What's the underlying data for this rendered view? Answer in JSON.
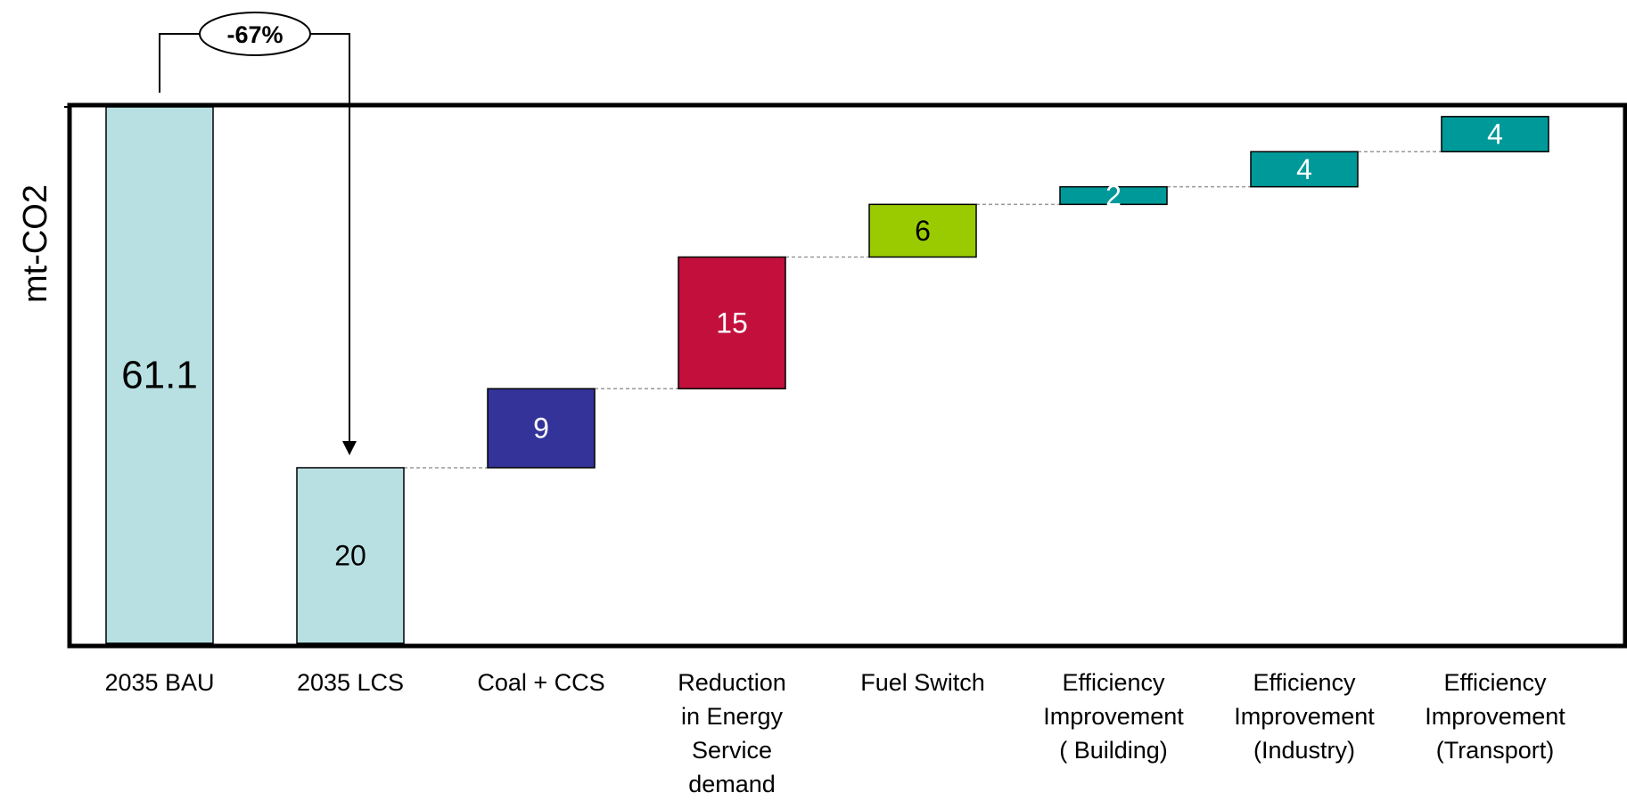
{
  "chart_data": {
    "type": "bar",
    "subtype": "waterfall",
    "ylabel": "mt-CO2",
    "xlabel": "",
    "ylim": [
      0,
      61.1
    ],
    "grid": false,
    "categories": [
      "2035 BAU",
      "2035 LCS",
      "Coal + CCS",
      "Reduction\nin Energy\nService\ndemand",
      "Fuel Switch",
      "Efficiency\nImprovement\n( Building)",
      "Efficiency\nImprovement\n(Industry)",
      "Efficiency\nImprovement\n(Transport)"
    ],
    "bars": [
      {
        "label": "61.1",
        "base": 0,
        "value": 61.1,
        "color": "#b8e0e3",
        "text_color": "#000000"
      },
      {
        "label": "20",
        "base": 0,
        "value": 20,
        "color": "#b8e0e3",
        "text_color": "#000000"
      },
      {
        "label": "9",
        "base": 20,
        "value": 9,
        "color": "#33339a",
        "text_color": "#ffffff"
      },
      {
        "label": "15",
        "base": 29,
        "value": 15,
        "color": "#c20f3c",
        "text_color": "#ffffff"
      },
      {
        "label": "6",
        "base": 44,
        "value": 6,
        "color": "#9acb00",
        "text_color": "#000000"
      },
      {
        "label": "2",
        "base": 50,
        "value": 2,
        "color": "#009999",
        "text_color": "#ffffff"
      },
      {
        "label": "4",
        "base": 52,
        "value": 4,
        "color": "#009999",
        "text_color": "#ffffff"
      },
      {
        "label": "4",
        "base": 56,
        "value": 4,
        "color": "#009999",
        "text_color": "#ffffff"
      }
    ],
    "annotation": {
      "text": "-67%",
      "from": "2035 BAU",
      "to": "2035 LCS"
    }
  }
}
